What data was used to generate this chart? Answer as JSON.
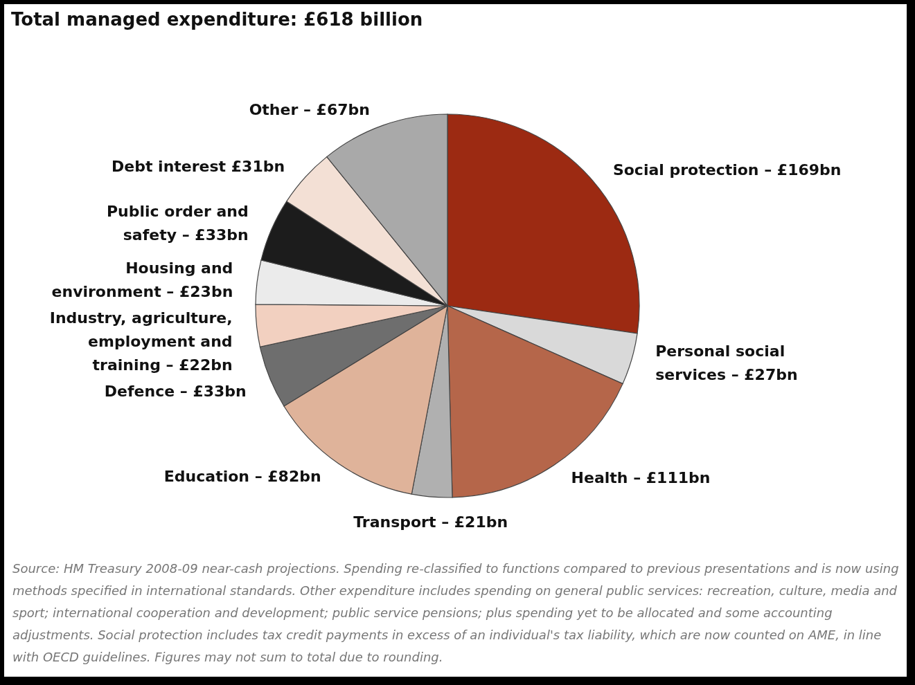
{
  "chart_data": {
    "type": "pie",
    "title": "Total managed expenditure: £618 billion",
    "categories": [
      "Social protection –",
      "Personal social\nservices –",
      "Health –",
      "Transport –",
      "Education –",
      "Defence –",
      "Industry, agriculture,\nemployment and\ntraining –",
      "Housing and\nenvironment –",
      "Public order and\nsafety –",
      "Debt interest",
      "Other –"
    ],
    "values": [
      169,
      27,
      111,
      21,
      82,
      33,
      22,
      23,
      33,
      31,
      67
    ],
    "value_labels": [
      "£169bn",
      "£27bn",
      "£111bn",
      "£21bn",
      "£82bn",
      "£33bn",
      "£22bn",
      "£23bn",
      "£33bn",
      "£31bn",
      "£67bn"
    ],
    "colors": [
      "#9c2a12",
      "#d9d9d9",
      "#b5664a",
      "#b0b0b0",
      "#dfb39a",
      "#6e6e6e",
      "#f2d0c0",
      "#ebebeb",
      "#1c1c1c",
      "#f3e0d5",
      "#a9a9a9"
    ],
    "annotations": [
      "Source: HM Treasury 2008-09 near-cash projections. Spending re-classified to functions compared to previous presentations and is now using methods specified in international standards. Other expenditure includes spending on general public services: recreation, culture, media and sport; international cooperation and development; public service pensions; plus spending yet to be allocated and some accounting adjustments. Social protection includes tax credit payments in excess of an individual's tax liability, which are now counted on AME, in line with OECD guidelines. Figures may not sum to total due to rounding."
    ]
  }
}
